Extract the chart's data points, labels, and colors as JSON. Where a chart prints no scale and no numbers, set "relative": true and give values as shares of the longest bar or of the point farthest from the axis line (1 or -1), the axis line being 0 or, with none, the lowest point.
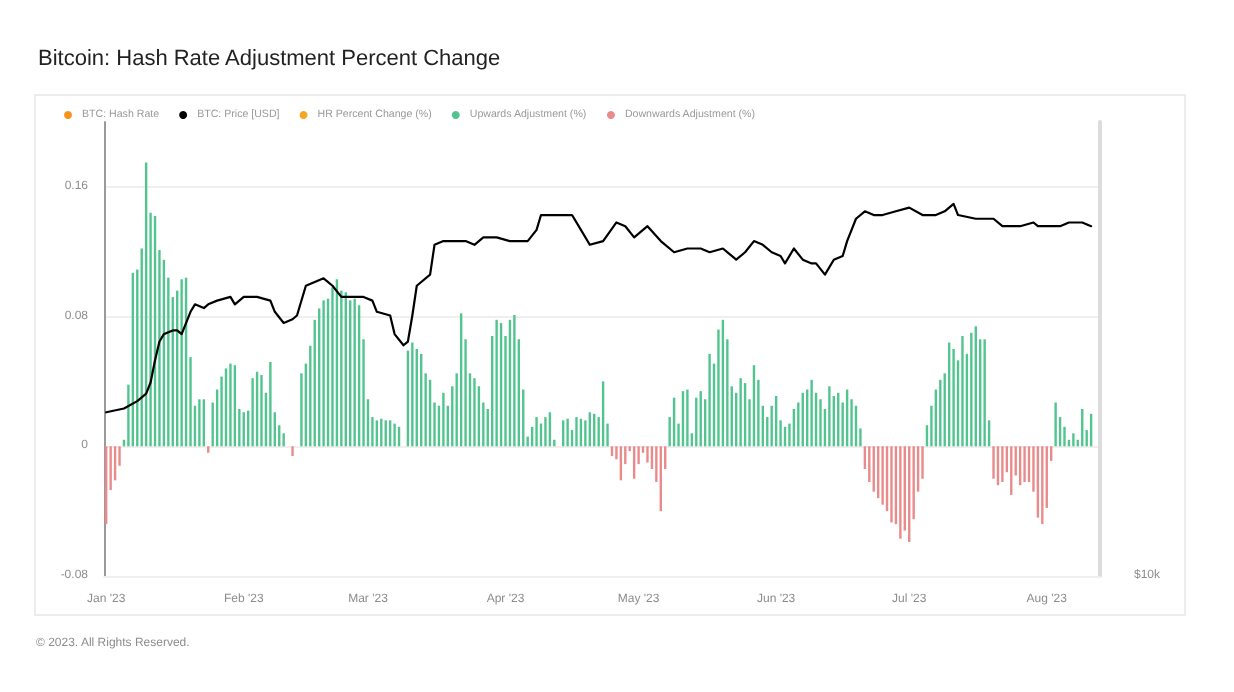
{
  "chart_data": [
    {
      "type": "line",
      "title": "Bitcoin: Hash Rate Adjustment Percent Change",
      "legend": "top left",
      "relative": true,
      "tick_labels": false,
      "annotations": [
        "$10k"
      ],
      "xlim": [
        "2022-12-31T12:00",
        "2023-08-13"
      ],
      "x": [
        "2023-01-01",
        "2023-01-05",
        "2023-01-08",
        "2023-01-10",
        "2023-01-11",
        "2023-01-12",
        "2023-01-13",
        "2023-01-14",
        "2023-01-16",
        "2023-01-17",
        "2023-01-18",
        "2023-01-20",
        "2023-01-21",
        "2023-01-23",
        "2023-01-24",
        "2023-01-26",
        "2023-01-29",
        "2023-01-30",
        "2023-02-01",
        "2023-02-04",
        "2023-02-07",
        "2023-02-08",
        "2023-02-10",
        "2023-02-12",
        "2023-02-13",
        "2023-02-15",
        "2023-02-17",
        "2023-02-19",
        "2023-02-21",
        "2023-02-23",
        "2023-02-25",
        "2023-02-28",
        "2023-03-02",
        "2023-03-03",
        "2023-03-06",
        "2023-03-07",
        "2023-03-09",
        "2023-03-10",
        "2023-03-11",
        "2023-03-12",
        "2023-03-15",
        "2023-03-16",
        "2023-03-18",
        "2023-03-21",
        "2023-03-23",
        "2023-03-25",
        "2023-03-27",
        "2023-03-30",
        "2023-04-02",
        "2023-04-06",
        "2023-04-08",
        "2023-04-09",
        "2023-04-13",
        "2023-04-16",
        "2023-04-18",
        "2023-04-20",
        "2023-04-23",
        "2023-04-26",
        "2023-04-28",
        "2023-04-30",
        "2023-05-03",
        "2023-05-06",
        "2023-05-09",
        "2023-05-12",
        "2023-05-15",
        "2023-05-17",
        "2023-05-20",
        "2023-05-22",
        "2023-05-23",
        "2023-05-25",
        "2023-05-27",
        "2023-05-29",
        "2023-05-31",
        "2023-06-02",
        "2023-06-03",
        "2023-06-05",
        "2023-06-07",
        "2023-06-09",
        "2023-06-10",
        "2023-06-12",
        "2023-06-14",
        "2023-06-16",
        "2023-06-17",
        "2023-06-19",
        "2023-06-21",
        "2023-06-23",
        "2023-06-25",
        "2023-06-28",
        "2023-07-01",
        "2023-07-04",
        "2023-07-07",
        "2023-07-09",
        "2023-07-11",
        "2023-07-12",
        "2023-07-16",
        "2023-07-20",
        "2023-07-22",
        "2023-07-26",
        "2023-07-29",
        "2023-07-30",
        "2023-08-04",
        "2023-08-06",
        "2023-08-09",
        "2023-08-11"
      ],
      "series": [
        {
          "name": "BTC: Hash Rate",
          "color": "#f7931a",
          "values": [
            null,
            null,
            null,
            null,
            null,
            null,
            null,
            null,
            null,
            null,
            null,
            null,
            null,
            null,
            null,
            null,
            null,
            null,
            null,
            null,
            null,
            null,
            null,
            null,
            null,
            null,
            null,
            null,
            null,
            null,
            null,
            null,
            null,
            null,
            null,
            null,
            null,
            null,
            null,
            null,
            null,
            null,
            null,
            null,
            null,
            null,
            null,
            null,
            null,
            null,
            null,
            null,
            null,
            null,
            null,
            null,
            null,
            null,
            null,
            null,
            null,
            null,
            null,
            null,
            null,
            null,
            null,
            null,
            null,
            null,
            null,
            null,
            null,
            null,
            null,
            null,
            null,
            null,
            null,
            null,
            null,
            null,
            null,
            null,
            null,
            null,
            null,
            null,
            null,
            null,
            null,
            null,
            null,
            null,
            null,
            null,
            null,
            null,
            null,
            null,
            null,
            null,
            null,
            null
          ]
        },
        {
          "name": "BTC: Price [USD]",
          "color": "#000000",
          "axis": "y2",
          "values": [
            0.44,
            0.45,
            0.47,
            0.49,
            0.52,
            0.58,
            0.63,
            0.65,
            0.66,
            0.66,
            0.65,
            0.71,
            0.73,
            0.72,
            0.73,
            0.74,
            0.75,
            0.73,
            0.75,
            0.75,
            0.74,
            0.71,
            0.68,
            0.69,
            0.7,
            0.78,
            0.79,
            0.8,
            0.78,
            0.75,
            0.75,
            0.75,
            0.74,
            0.71,
            0.7,
            0.65,
            0.62,
            0.63,
            0.7,
            0.78,
            0.81,
            0.89,
            0.9,
            0.9,
            0.9,
            0.89,
            0.91,
            0.91,
            0.9,
            0.9,
            0.93,
            0.97,
            0.97,
            0.97,
            0.93,
            0.89,
            0.9,
            0.95,
            0.94,
            0.91,
            0.94,
            0.9,
            0.87,
            0.88,
            0.88,
            0.87,
            0.88,
            0.86,
            0.85,
            0.87,
            0.9,
            0.89,
            0.87,
            0.86,
            0.84,
            0.88,
            0.85,
            0.84,
            0.84,
            0.81,
            0.85,
            0.86,
            0.9,
            0.96,
            0.98,
            0.97,
            0.97,
            0.98,
            0.99,
            0.97,
            0.97,
            0.98,
            1,
            0.97,
            0.96,
            0.96,
            0.94,
            0.94,
            0.95,
            0.94,
            0.94,
            0.95,
            0.95,
            0.94
          ]
        }
      ]
    },
    {
      "type": "bar",
      "legend": "top left",
      "grid": "y",
      "annotations": [
        "© 2023. All Rights Reserved."
      ],
      "xlim": [
        "2022-12-31T12:00",
        "2023-08-13"
      ],
      "xticks": [
        {
          "value": "2023-01-01",
          "label": "Jan '23"
        },
        {
          "value": "2023-02-01",
          "label": "Feb '23"
        },
        {
          "value": "2023-03-01",
          "label": "Mar '23"
        },
        {
          "value": "2023-04-01",
          "label": "Apr '23"
        },
        {
          "value": "2023-05-01",
          "label": "May '23"
        },
        {
          "value": "2023-06-01",
          "label": "Jun '23"
        },
        {
          "value": "2023-07-01",
          "label": "Jul '23"
        },
        {
          "value": "2023-08-01",
          "label": "Aug '23"
        }
      ],
      "ylim": [
        -0.08,
        0.2
      ],
      "yticks": [
        -0.08,
        0,
        0.08,
        0.16
      ],
      "x": [
        "2023-01-01",
        "2023-01-02",
        "2023-01-03",
        "2023-01-04",
        "2023-01-05",
        "2023-01-06",
        "2023-01-07",
        "2023-01-08",
        "2023-01-09",
        "2023-01-10",
        "2023-01-11",
        "2023-01-12",
        "2023-01-13",
        "2023-01-14",
        "2023-01-15",
        "2023-01-16",
        "2023-01-17",
        "2023-01-18",
        "2023-01-19",
        "2023-01-20",
        "2023-01-21",
        "2023-01-22",
        "2023-01-23",
        "2023-01-24",
        "2023-01-25",
        "2023-01-26",
        "2023-01-27",
        "2023-01-28",
        "2023-01-29",
        "2023-01-30",
        "2023-01-31",
        "2023-02-01",
        "2023-02-02",
        "2023-02-03",
        "2023-02-04",
        "2023-02-05",
        "2023-02-06",
        "2023-02-07",
        "2023-02-08",
        "2023-02-09",
        "2023-02-10",
        "2023-02-11",
        "2023-02-12",
        "2023-02-13",
        "2023-02-14",
        "2023-02-15",
        "2023-02-16",
        "2023-02-17",
        "2023-02-18",
        "2023-02-19",
        "2023-02-20",
        "2023-02-21",
        "2023-02-22",
        "2023-02-23",
        "2023-02-24",
        "2023-02-25",
        "2023-02-26",
        "2023-02-27",
        "2023-02-28",
        "2023-03-01",
        "2023-03-02",
        "2023-03-03",
        "2023-03-04",
        "2023-03-05",
        "2023-03-06",
        "2023-03-07",
        "2023-03-08",
        "2023-03-09",
        "2023-03-10",
        "2023-03-11",
        "2023-03-12",
        "2023-03-13",
        "2023-03-14",
        "2023-03-15",
        "2023-03-16",
        "2023-03-17",
        "2023-03-18",
        "2023-03-19",
        "2023-03-20",
        "2023-03-21",
        "2023-03-22",
        "2023-03-23",
        "2023-03-24",
        "2023-03-25",
        "2023-03-26",
        "2023-03-27",
        "2023-03-28",
        "2023-03-29",
        "2023-03-30",
        "2023-03-31",
        "2023-04-01",
        "2023-04-02",
        "2023-04-03",
        "2023-04-04",
        "2023-04-05",
        "2023-04-06",
        "2023-04-07",
        "2023-04-08",
        "2023-04-09",
        "2023-04-10",
        "2023-04-11",
        "2023-04-12",
        "2023-04-13",
        "2023-04-14",
        "2023-04-15",
        "2023-04-16",
        "2023-04-17",
        "2023-04-18",
        "2023-04-19",
        "2023-04-20",
        "2023-04-21",
        "2023-04-22",
        "2023-04-23",
        "2023-04-24",
        "2023-04-25",
        "2023-04-26",
        "2023-04-27",
        "2023-04-28",
        "2023-04-29",
        "2023-04-30",
        "2023-05-01",
        "2023-05-02",
        "2023-05-03",
        "2023-05-04",
        "2023-05-05",
        "2023-05-06",
        "2023-05-07",
        "2023-05-08",
        "2023-05-09",
        "2023-05-10",
        "2023-05-11",
        "2023-05-12",
        "2023-05-13",
        "2023-05-14",
        "2023-05-15",
        "2023-05-16",
        "2023-05-17",
        "2023-05-18",
        "2023-05-19",
        "2023-05-20",
        "2023-05-21",
        "2023-05-22",
        "2023-05-23",
        "2023-05-24",
        "2023-05-25",
        "2023-05-26",
        "2023-05-27",
        "2023-05-28",
        "2023-05-29",
        "2023-05-30",
        "2023-05-31",
        "2023-06-01",
        "2023-06-02",
        "2023-06-03",
        "2023-06-04",
        "2023-06-05",
        "2023-06-06",
        "2023-06-07",
        "2023-06-08",
        "2023-06-09",
        "2023-06-10",
        "2023-06-11",
        "2023-06-12",
        "2023-06-13",
        "2023-06-14",
        "2023-06-15",
        "2023-06-16",
        "2023-06-17",
        "2023-06-18",
        "2023-06-19",
        "2023-06-20",
        "2023-06-21",
        "2023-06-22",
        "2023-06-23",
        "2023-06-24",
        "2023-06-25",
        "2023-06-26",
        "2023-06-27",
        "2023-06-28",
        "2023-06-29",
        "2023-06-30",
        "2023-07-01",
        "2023-07-02",
        "2023-07-03",
        "2023-07-04",
        "2023-07-05",
        "2023-07-06",
        "2023-07-07",
        "2023-07-08",
        "2023-07-09",
        "2023-07-10",
        "2023-07-11",
        "2023-07-12",
        "2023-07-13",
        "2023-07-14",
        "2023-07-15",
        "2023-07-16",
        "2023-07-17",
        "2023-07-18",
        "2023-07-19",
        "2023-07-20",
        "2023-07-21",
        "2023-07-22",
        "2023-07-23",
        "2023-07-24",
        "2023-07-25",
        "2023-07-26",
        "2023-07-27",
        "2023-07-28",
        "2023-07-29",
        "2023-07-30",
        "2023-07-31",
        "2023-08-01",
        "2023-08-02",
        "2023-08-03",
        "2023-08-04",
        "2023-08-05",
        "2023-08-06",
        "2023-08-07",
        "2023-08-08",
        "2023-08-09",
        "2023-08-10",
        "2023-08-11"
      ],
      "series": [
        {
          "name": "HR Percent Change (%)",
          "color": "#f5a623",
          "values": [
            null,
            null,
            null,
            null,
            null,
            null,
            null,
            null,
            null,
            null,
            null,
            null,
            null,
            null,
            null,
            null,
            null,
            null,
            null,
            null,
            null,
            null,
            null,
            null,
            null,
            null,
            null,
            null,
            null,
            null,
            null,
            null,
            null,
            null,
            null,
            null,
            null,
            null,
            null,
            null,
            null,
            null,
            null,
            null,
            null,
            null,
            null,
            null,
            null,
            null,
            null,
            null,
            null,
            null,
            null,
            null,
            null,
            null,
            null,
            null,
            null,
            null,
            null,
            null,
            null,
            null,
            null,
            null,
            null,
            null,
            null,
            null,
            null,
            null,
            null,
            null,
            null,
            null,
            null,
            null,
            null,
            null,
            null,
            null,
            null,
            null,
            null,
            null,
            null,
            null,
            null,
            null,
            null,
            null,
            null,
            null,
            null,
            null,
            null,
            null,
            null,
            null,
            null,
            null,
            null,
            null,
            null,
            null,
            null,
            null,
            null,
            null,
            null,
            null,
            null,
            null,
            null,
            null,
            null,
            null,
            null,
            null,
            null,
            null,
            null,
            null,
            null,
            null,
            null,
            null,
            null,
            null,
            null,
            null,
            null,
            null,
            null,
            null,
            null,
            null,
            null,
            null,
            null,
            null,
            null,
            null,
            null,
            null,
            null,
            null,
            null,
            null,
            null,
            null,
            null,
            null,
            null,
            null,
            null,
            null,
            null,
            null,
            null,
            null,
            null,
            null,
            null,
            null,
            null,
            null,
            null,
            null,
            null,
            null,
            null,
            null,
            null,
            null,
            null,
            null,
            null,
            null,
            null,
            null,
            null,
            null,
            null,
            null,
            null,
            null,
            null,
            null,
            null,
            null,
            null,
            null,
            null,
            null,
            null,
            null,
            null,
            null,
            null,
            null,
            null,
            null,
            null,
            null,
            null,
            null,
            null,
            null,
            null,
            null,
            null,
            null,
            null,
            null,
            null,
            null,
            null,
            null,
            null
          ]
        },
        {
          "name": "Upwards Adjustment (%)",
          "color": "#52c48f",
          "values": [
            null,
            null,
            null,
            null,
            0.004,
            0.038,
            0.107,
            0.109,
            0.122,
            0.175,
            0.144,
            0.142,
            0.121,
            0.115,
            0.104,
            0.092,
            0.096,
            0.103,
            0.104,
            0.055,
            0.025,
            0.029,
            0.029,
            null,
            0.027,
            0.035,
            0.043,
            0.048,
            0.051,
            0.05,
            0.023,
            0.021,
            0.022,
            0.042,
            0.046,
            0.044,
            0.033,
            0.052,
            0.021,
            0.013,
            0.008,
            null,
            null,
            null,
            0.045,
            0.051,
            0.062,
            0.078,
            0.085,
            0.09,
            0.091,
            0.098,
            0.103,
            0.096,
            0.095,
            0.09,
            0.091,
            0.087,
            0.066,
            0.029,
            0.018,
            0.016,
            0.017,
            0.016,
            0.016,
            0.014,
            0.012,
            null,
            0.059,
            0.064,
            0.06,
            0.057,
            0.045,
            0.041,
            0.027,
            0.025,
            0.033,
            0.025,
            0.037,
            0.045,
            0.082,
            0.066,
            0.045,
            0.042,
            0.037,
            0.027,
            0.023,
            0.068,
            0.078,
            0.076,
            0.068,
            0.078,
            0.081,
            0.066,
            0.035,
            0.006,
            0.012,
            0.018,
            0.014,
            0.018,
            0.021,
            0.004,
            null,
            0.016,
            0.017,
            0.01,
            0.018,
            0.017,
            0.016,
            0.021,
            0.02,
            0.018,
            0.04,
            0.014,
            null,
            null,
            null,
            null,
            null,
            null,
            null,
            null,
            null,
            null,
            null,
            null,
            null,
            0.018,
            0.03,
            0.014,
            0.034,
            0.035,
            0.008,
            0.03,
            0.034,
            0.029,
            0.057,
            0.051,
            0.072,
            0.078,
            0.066,
            0.037,
            0.033,
            0.042,
            0.039,
            0.029,
            0.05,
            0.041,
            0.025,
            0.018,
            0.025,
            0.031,
            0.016,
            0.012,
            0.014,
            0.023,
            0.027,
            0.033,
            0.035,
            0.041,
            0.033,
            0.029,
            0.023,
            0.037,
            0.031,
            0.033,
            0.027,
            0.035,
            0.029,
            0.025,
            0.011,
            null,
            null,
            null,
            null,
            null,
            null,
            null,
            null,
            null,
            null,
            null,
            null,
            null,
            null,
            0.013,
            0.025,
            0.035,
            0.041,
            0.045,
            0.064,
            0.06,
            0.053,
            0.068,
            0.057,
            0.07,
            0.074,
            0.066,
            0.066,
            0.016,
            null,
            null,
            null,
            null,
            null,
            null,
            null,
            null,
            null,
            null,
            null,
            null,
            null,
            null,
            0.027,
            0.018,
            0.012,
            0.004,
            0.008,
            0.004,
            0.023,
            0.01,
            0.02
          ]
        },
        {
          "name": "Downwards Adjustment (%)",
          "color": "#e98b8b",
          "values": [
            -0.048,
            -0.027,
            -0.021,
            -0.012,
            null,
            null,
            null,
            null,
            null,
            null,
            null,
            null,
            null,
            null,
            null,
            null,
            null,
            null,
            null,
            null,
            null,
            null,
            null,
            -0.004,
            null,
            null,
            null,
            null,
            null,
            null,
            null,
            null,
            null,
            null,
            null,
            null,
            null,
            null,
            null,
            null,
            null,
            null,
            -0.006,
            null,
            null,
            null,
            null,
            null,
            null,
            null,
            null,
            null,
            null,
            null,
            null,
            null,
            null,
            null,
            null,
            null,
            null,
            null,
            null,
            null,
            null,
            null,
            null,
            null,
            null,
            null,
            null,
            null,
            null,
            null,
            null,
            null,
            null,
            null,
            null,
            null,
            null,
            null,
            null,
            null,
            null,
            null,
            null,
            null,
            null,
            null,
            null,
            null,
            null,
            null,
            null,
            null,
            null,
            null,
            null,
            null,
            null,
            null,
            null,
            null,
            null,
            null,
            null,
            null,
            null,
            null,
            null,
            null,
            null,
            null,
            -0.006,
            -0.008,
            -0.021,
            -0.011,
            -0.003,
            -0.02,
            -0.011,
            -0.004,
            -0.01,
            -0.014,
            -0.022,
            -0.04,
            -0.014,
            null,
            null,
            null,
            null,
            null,
            null,
            null,
            null,
            null,
            null,
            null,
            null,
            null,
            null,
            null,
            null,
            null,
            null,
            null,
            null,
            null,
            null,
            null,
            null,
            null,
            null,
            null,
            null,
            null,
            null,
            null,
            null,
            null,
            null,
            null,
            null,
            null,
            null,
            null,
            null,
            null,
            null,
            null,
            null,
            -0.014,
            -0.022,
            -0.028,
            -0.032,
            -0.036,
            -0.04,
            -0.047,
            -0.048,
            -0.057,
            -0.052,
            -0.059,
            -0.045,
            -0.028,
            -0.02,
            null,
            null,
            null,
            null,
            null,
            null,
            null,
            null,
            null,
            null,
            null,
            null,
            null,
            null,
            null,
            -0.02,
            -0.024,
            -0.022,
            -0.016,
            -0.03,
            -0.018,
            -0.024,
            -0.022,
            -0.022,
            -0.028,
            -0.044,
            -0.048,
            -0.038,
            -0.009,
            null,
            null,
            null,
            null,
            null,
            null,
            null,
            null,
            null
          ]
        }
      ]
    }
  ]
}
